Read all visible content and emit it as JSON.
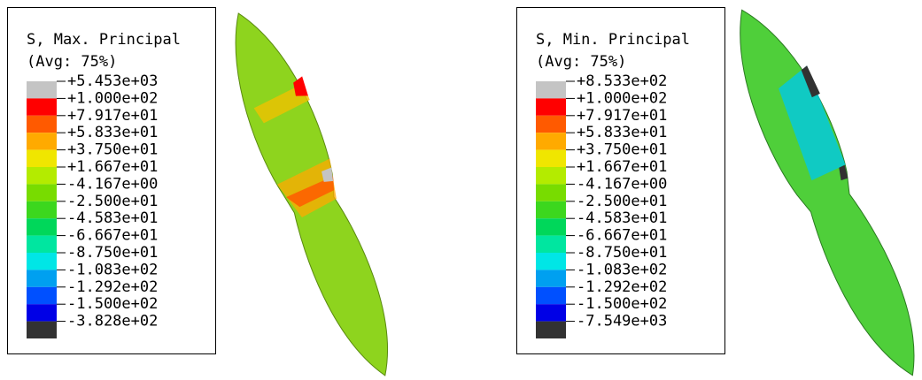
{
  "panels": [
    {
      "title": "S, Max. Principal",
      "subtitle": "(Avg: 75%)",
      "labels": [
        "+5.453e+03",
        "+1.000e+02",
        "+7.917e+01",
        "+5.833e+01",
        "+3.750e+01",
        "+1.667e+01",
        "-4.167e+00",
        "-2.500e+01",
        "-4.583e+01",
        "-6.667e+01",
        "-8.750e+01",
        "-1.083e+02",
        "-1.292e+02",
        "-1.500e+02",
        "-3.828e+02"
      ],
      "colors": [
        "#c4c4c4",
        "#ff0000",
        "#ff5a00",
        "#ffaa00",
        "#f0e600",
        "#b4eb00",
        "#78dc00",
        "#3cd71e",
        "#00d75a",
        "#00e6a0",
        "#00e6e6",
        "#00a0f0",
        "#0050ff",
        "#0000e6",
        "#323232"
      ]
    },
    {
      "title": "S, Min. Principal",
      "subtitle": "(Avg: 75%)",
      "labels": [
        "+8.533e+02",
        "+1.000e+02",
        "+7.917e+01",
        "+5.833e+01",
        "+3.750e+01",
        "+1.667e+01",
        "-4.167e+00",
        "-2.500e+01",
        "-4.583e+01",
        "-6.667e+01",
        "-8.750e+01",
        "-1.083e+02",
        "-1.292e+02",
        "-1.500e+02",
        "-7.549e+03"
      ],
      "colors": [
        "#c4c4c4",
        "#ff0000",
        "#ff5a00",
        "#ffaa00",
        "#f0e600",
        "#b4eb00",
        "#78dc00",
        "#3cd71e",
        "#00d75a",
        "#00e6a0",
        "#00e6e6",
        "#00a0f0",
        "#0050ff",
        "#0000e6",
        "#323232"
      ]
    }
  ]
}
